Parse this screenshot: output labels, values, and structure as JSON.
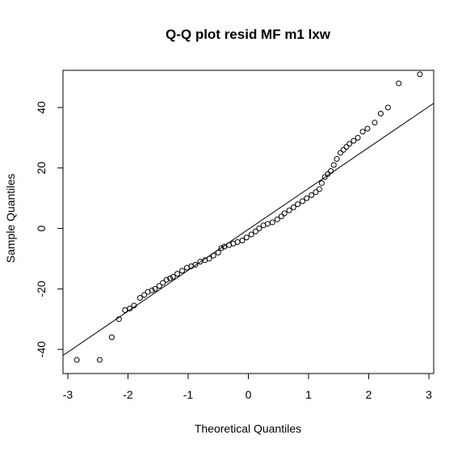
{
  "chart_data": {
    "type": "scatter",
    "title": "Q-Q plot resid MF m1 lxw",
    "xlabel": "Theoretical Quantiles",
    "ylabel": "Sample Quantiles",
    "xlim": [
      -3.08,
      3.08
    ],
    "ylim": [
      -48,
      52.3
    ],
    "xticks": [
      -3,
      -2,
      -1,
      0,
      1,
      2,
      3
    ],
    "yticks": [
      -40,
      -20,
      0,
      20,
      40
    ],
    "color": "#000000",
    "reference_line": {
      "intercept": -0.3,
      "slope": 13.54
    },
    "x": [
      -2.85,
      -2.47,
      -2.27,
      -2.15,
      -2.05,
      -1.97,
      -1.9,
      -1.8,
      -1.73,
      -1.67,
      -1.6,
      -1.55,
      -1.48,
      -1.42,
      -1.36,
      -1.3,
      -1.25,
      -1.18,
      -1.1,
      -1.02,
      -0.95,
      -0.88,
      -0.8,
      -0.72,
      -0.65,
      -0.58,
      -0.5,
      -0.45,
      -0.4,
      -0.32,
      -0.25,
      -0.18,
      -0.1,
      -0.03,
      0.05,
      0.12,
      0.18,
      0.25,
      0.32,
      0.4,
      0.48,
      0.55,
      0.6,
      0.68,
      0.75,
      0.82,
      0.9,
      0.97,
      1.05,
      1.12,
      1.18,
      1.22,
      1.27,
      1.32,
      1.37,
      1.42,
      1.47,
      1.53,
      1.58,
      1.63,
      1.68,
      1.75,
      1.82,
      1.9,
      1.98,
      2.1,
      2.2,
      2.32,
      2.5,
      2.85
    ],
    "values": [
      -43.5,
      -43.5,
      -36,
      -30,
      -27,
      -26.5,
      -25.5,
      -23,
      -22,
      -21,
      -20.5,
      -20,
      -19,
      -18,
      -17,
      -16.5,
      -16,
      -15,
      -14,
      -13,
      -12.5,
      -12,
      -11,
      -10.5,
      -10,
      -9,
      -8,
      -6.5,
      -6,
      -5.5,
      -5,
      -4.5,
      -4,
      -3,
      -2,
      -1,
      0,
      1,
      1.5,
      2,
      3,
      4,
      5,
      6,
      7,
      8,
      9,
      10,
      11,
      12,
      13,
      15,
      17,
      18,
      19,
      21,
      23,
      25,
      26,
      27,
      28,
      29,
      30,
      32,
      33,
      35,
      38,
      40,
      48,
      51
    ]
  }
}
